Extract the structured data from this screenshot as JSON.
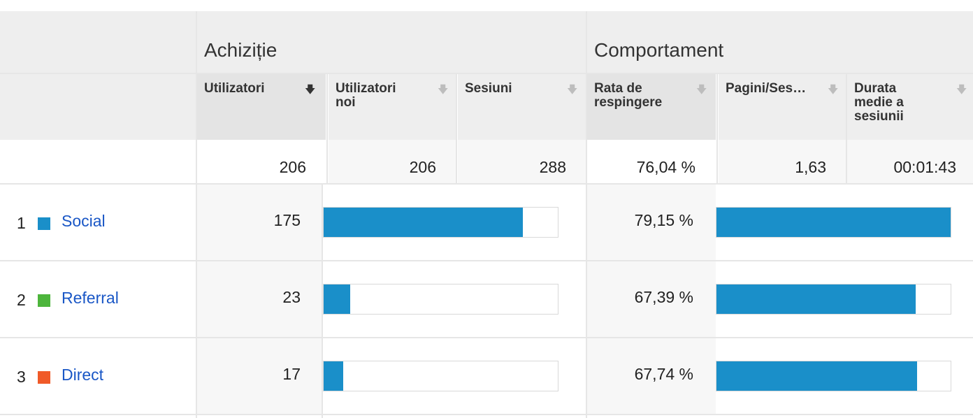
{
  "groups": {
    "acquisition": "Achiziție",
    "behavior": "Comportament"
  },
  "columns": [
    {
      "label": "Utilizatori",
      "sorted": true
    },
    {
      "label": "Utilizatori noi",
      "sorted": false
    },
    {
      "label": "Sesiuni",
      "sorted": false
    },
    {
      "label": "Rata de respingere",
      "sorted": false
    },
    {
      "label": "Pagini/Ses…",
      "sorted": false
    },
    {
      "label": "Durata medie a sesiunii",
      "sorted": false
    }
  ],
  "totals": {
    "users": "206",
    "new_users": "206",
    "sessions": "288",
    "bounce_rate": "76,04 %",
    "pages_per_session": "1,63",
    "avg_duration": "00:01:43"
  },
  "rows": [
    {
      "index": "1",
      "channel": "Social",
      "color": "#1a8fc9",
      "users": "175",
      "users_fraction": 0.85,
      "bounce": "79,15 %",
      "bounce_fraction": 1.0
    },
    {
      "index": "2",
      "channel": "Referral",
      "color": "#4db53c",
      "users": "23",
      "users_fraction": 0.112,
      "bounce": "67,39 %",
      "bounce_fraction": 0.851
    },
    {
      "index": "3",
      "channel": "Direct",
      "color": "#f05a28",
      "users": "17",
      "users_fraction": 0.083,
      "bounce": "67,74 %",
      "bounce_fraction": 0.856
    }
  ],
  "colors": {
    "bar": "#1a8fc9",
    "link": "#1a57c6",
    "header_bg": "#eeeeee"
  }
}
